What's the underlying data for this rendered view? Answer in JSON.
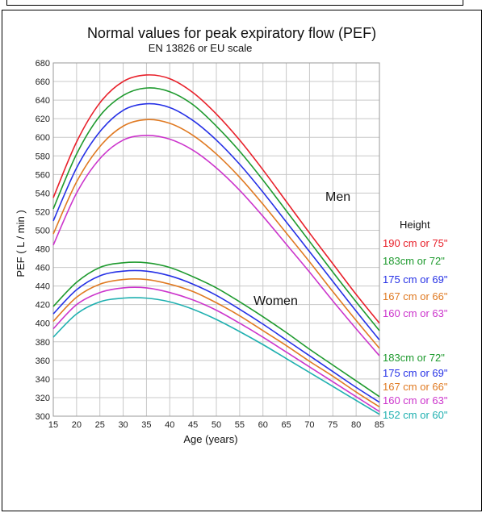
{
  "chart_data": {
    "type": "line",
    "title": "Normal values for peak expiratory flow (PEF)",
    "subtitle": "EN 13826 or EU scale",
    "xlabel": "Age (years)",
    "ylabel": "PEF ( L / min )",
    "xlim": [
      15,
      85
    ],
    "ylim": [
      300,
      680
    ],
    "xticks": [
      15,
      20,
      25,
      30,
      35,
      40,
      45,
      50,
      55,
      60,
      65,
      70,
      75,
      80,
      85
    ],
    "yticks": [
      300,
      320,
      340,
      360,
      380,
      400,
      420,
      440,
      460,
      480,
      500,
      520,
      540,
      560,
      580,
      600,
      620,
      640,
      660,
      680
    ],
    "grid": true,
    "legend_header": "Height",
    "group_labels": {
      "men": "Men",
      "women": "Women"
    },
    "series": [
      {
        "name": "190 cm or 75\"",
        "group": "men",
        "color": "#e8202a",
        "x": [
          15,
          20,
          25,
          30,
          35,
          40,
          45,
          50,
          55,
          60,
          65,
          70,
          75,
          80,
          85
        ],
        "y": [
          535,
          595,
          637,
          660,
          667,
          663,
          648,
          625,
          597,
          565,
          531,
          497,
          464,
          431,
          400
        ]
      },
      {
        "name": "183cm or 72\"",
        "group": "men",
        "color": "#1e9a2e",
        "x": [
          15,
          20,
          25,
          30,
          35,
          40,
          45,
          50,
          55,
          60,
          65,
          70,
          75,
          80,
          85
        ],
        "y": [
          523,
          582,
          623,
          645,
          653,
          649,
          635,
          612,
          585,
          554,
          521,
          488,
          455,
          423,
          392
        ]
      },
      {
        "name": "175 cm or 69\"",
        "group": "men",
        "color": "#2631e6",
        "x": [
          15,
          20,
          25,
          30,
          35,
          40,
          45,
          50,
          55,
          60,
          65,
          70,
          75,
          80,
          85
        ],
        "y": [
          510,
          567,
          606,
          629,
          636,
          632,
          618,
          597,
          571,
          541,
          509,
          477,
          445,
          413,
          382
        ]
      },
      {
        "name": "167 cm or 66\"",
        "group": "men",
        "color": "#e07a22",
        "x": [
          15,
          20,
          25,
          30,
          35,
          40,
          45,
          50,
          55,
          60,
          65,
          70,
          75,
          80,
          85
        ],
        "y": [
          496,
          552,
          590,
          612,
          619,
          615,
          602,
          582,
          557,
          528,
          497,
          466,
          434,
          403,
          373
        ]
      },
      {
        "name": "160 cm or 63\"",
        "group": "men",
        "color": "#cc35cc",
        "x": [
          15,
          20,
          25,
          30,
          35,
          40,
          45,
          50,
          55,
          60,
          65,
          70,
          75,
          80,
          85
        ],
        "y": [
          484,
          540,
          577,
          597,
          602,
          598,
          586,
          567,
          543,
          515,
          485,
          455,
          424,
          394,
          365
        ]
      },
      {
        "name": "183cm or 72\"",
        "group": "women",
        "color": "#1e9a2e",
        "x": [
          15,
          20,
          25,
          30,
          35,
          40,
          45,
          50,
          55,
          60,
          65,
          70,
          75,
          80,
          85
        ],
        "y": [
          418,
          444,
          460,
          465,
          465,
          460,
          450,
          438,
          423,
          407,
          390,
          372,
          355,
          338,
          321
        ]
      },
      {
        "name": "175 cm or 69\"",
        "group": "women",
        "color": "#2631e6",
        "x": [
          15,
          20,
          25,
          30,
          35,
          40,
          45,
          50,
          55,
          60,
          65,
          70,
          75,
          80,
          85
        ],
        "y": [
          410,
          436,
          451,
          456,
          456,
          451,
          442,
          430,
          415,
          399,
          382,
          365,
          348,
          331,
          315
        ]
      },
      {
        "name": "167 cm or 66\"",
        "group": "women",
        "color": "#e07a22",
        "x": [
          15,
          20,
          25,
          30,
          35,
          40,
          45,
          50,
          55,
          60,
          65,
          70,
          75,
          80,
          85
        ],
        "y": [
          402,
          428,
          442,
          447,
          447,
          442,
          434,
          422,
          408,
          392,
          376,
          359,
          343,
          326,
          310
        ]
      },
      {
        "name": "160 cm or 63\"",
        "group": "women",
        "color": "#cc35cc",
        "x": [
          15,
          20,
          25,
          30,
          35,
          40,
          45,
          50,
          55,
          60,
          65,
          70,
          75,
          80,
          85
        ],
        "y": [
          394,
          420,
          433,
          438,
          438,
          433,
          425,
          414,
          400,
          385,
          369,
          353,
          337,
          321,
          305
        ]
      },
      {
        "name": "152 cm or 60\"",
        "group": "women",
        "color": "#1fb0b0",
        "x": [
          15,
          20,
          25,
          30,
          35,
          40,
          45,
          50,
          55,
          60,
          65,
          70,
          75,
          80,
          85
        ],
        "y": [
          385,
          410,
          423,
          427,
          427,
          423,
          415,
          404,
          391,
          377,
          362,
          347,
          332,
          317,
          302
        ]
      }
    ]
  }
}
